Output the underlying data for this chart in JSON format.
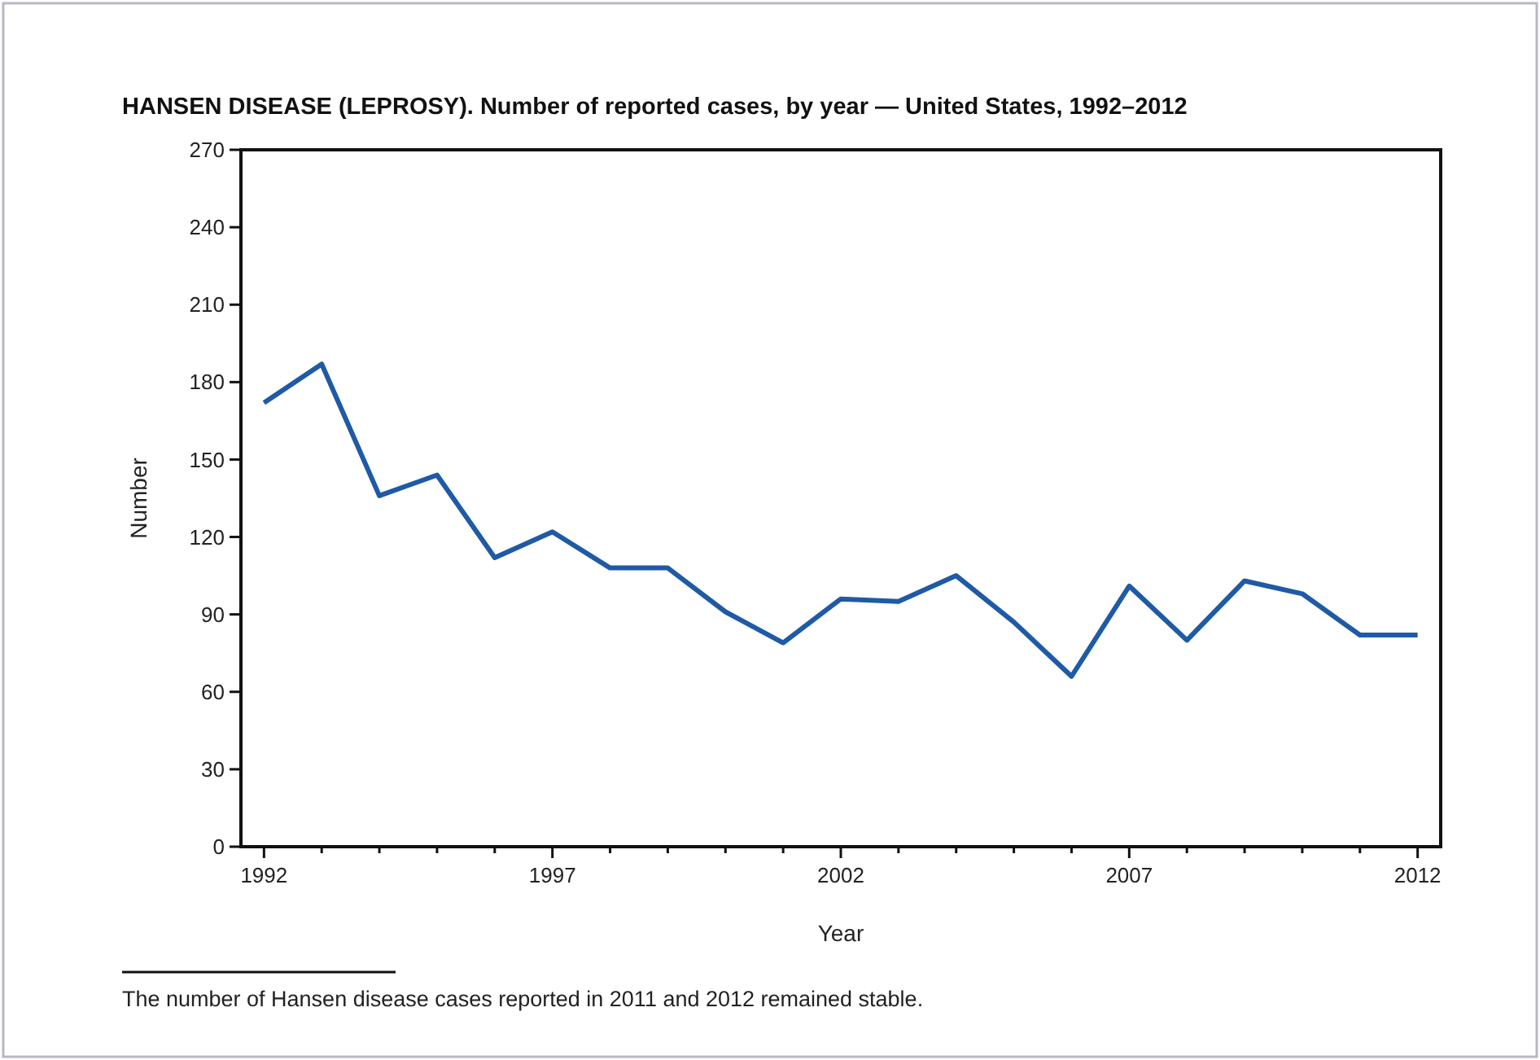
{
  "chart_data": {
    "type": "line",
    "title": "HANSEN DISEASE (LEPROSY). Number of reported cases, by year — United States, 1992–2012",
    "xlabel": "Year",
    "ylabel": "Number",
    "x": [
      1992,
      1993,
      1994,
      1995,
      1996,
      1997,
      1998,
      1999,
      2000,
      2001,
      2002,
      2003,
      2004,
      2005,
      2006,
      2007,
      2008,
      2009,
      2010,
      2011,
      2012
    ],
    "series": [
      {
        "color": "#1f5aa6",
        "values": [
          172,
          187,
          136,
          144,
          112,
          122,
          108,
          108,
          91,
          79,
          96,
          95,
          105,
          87,
          66,
          101,
          80,
          103,
          98,
          82,
          82
        ]
      }
    ],
    "xlim": [
      1991.6,
      2012.4
    ],
    "xticks": [
      1992,
      {
        "value": 1993,
        "label": null
      },
      {
        "value": 1994,
        "label": null
      },
      {
        "value": 1995,
        "label": null
      },
      {
        "value": 1996,
        "label": null
      },
      1997,
      {
        "value": 1998,
        "label": null
      },
      {
        "value": 1999,
        "label": null
      },
      {
        "value": 2000,
        "label": null
      },
      {
        "value": 2001,
        "label": null
      },
      2002,
      {
        "value": 2003,
        "label": null
      },
      {
        "value": 2004,
        "label": null
      },
      {
        "value": 2005,
        "label": null
      },
      {
        "value": 2006,
        "label": null
      },
      2007,
      {
        "value": 2008,
        "label": null
      },
      {
        "value": 2009,
        "label": null
      },
      {
        "value": 2010,
        "label": null
      },
      {
        "value": 2011,
        "label": null
      },
      2012
    ],
    "ylim": [
      0,
      270
    ],
    "yticks": [
      0,
      30,
      60,
      90,
      120,
      150,
      180,
      210,
      240,
      270
    ],
    "grid": false,
    "marker": "none",
    "line_style": "solid",
    "annotations": [
      "The number of Hansen disease cases reported in 2011 and 2012 remained stable."
    ]
  }
}
